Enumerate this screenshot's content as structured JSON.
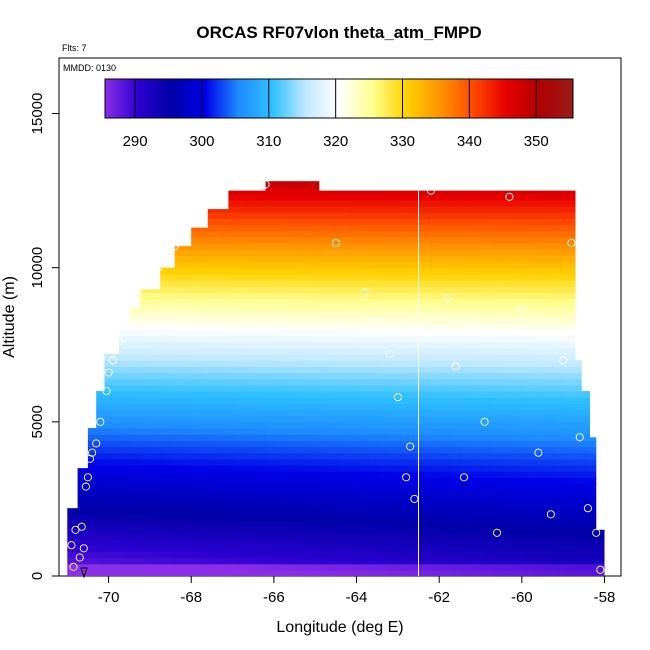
{
  "chart_data": {
    "type": "heatmap",
    "title": "ORCAS RF07vlon theta_atm_FMPD",
    "flights_label": "Flts: 7",
    "date_label": "MMDD: 0130",
    "xlabel": "Longitude (deg E)",
    "ylabel": "Altitude (m)",
    "xlim": [
      -71.2,
      -57.6
    ],
    "ylim": [
      0,
      16800
    ],
    "x_ticks": [
      -70,
      -68,
      -66,
      -64,
      -62,
      -60,
      -58
    ],
    "x_tick_labels": [
      "-70",
      "-68",
      "-66",
      "-64",
      "-62",
      "-60",
      "-58"
    ],
    "y_ticks": [
      0,
      5000,
      10000,
      15000
    ],
    "y_tick_labels": [
      "0",
      "5000",
      "10000",
      "15000"
    ],
    "colorbar": {
      "range": [
        285.5,
        355.5
      ],
      "ticks": [
        290,
        300,
        310,
        320,
        330,
        340,
        350
      ],
      "tick_labels": [
        "290",
        "300",
        "310",
        "320",
        "330",
        "340",
        "350"
      ],
      "colors": [
        "#8b2ee8",
        "#2a00d0",
        "#0000a8",
        "#0000e8",
        "#1d8cff",
        "#2ec0ff",
        "#bfe8ff",
        "#ffffff",
        "#ffff90",
        "#ffd200",
        "#ff9600",
        "#ff4b00",
        "#e80000",
        "#b00000",
        "#9a1c1c"
      ]
    },
    "vertical_line_x": -62.5,
    "upper_boundary": [
      [
        -71.0,
        0
      ],
      [
        -71.0,
        2200
      ],
      [
        -70.75,
        2200
      ],
      [
        -70.75,
        3500
      ],
      [
        -70.5,
        3500
      ],
      [
        -70.5,
        4800
      ],
      [
        -70.3,
        4800
      ],
      [
        -70.3,
        6000
      ],
      [
        -70.1,
        6000
      ],
      [
        -70.1,
        7200
      ],
      [
        -69.75,
        7200
      ],
      [
        -69.75,
        8000
      ],
      [
        -69.5,
        8000
      ],
      [
        -69.5,
        8700
      ],
      [
        -69.25,
        8700
      ],
      [
        -69.25,
        9300
      ],
      [
        -68.75,
        9300
      ],
      [
        -68.75,
        10000
      ],
      [
        -68.4,
        10000
      ],
      [
        -68.4,
        10700
      ],
      [
        -68.0,
        10700
      ],
      [
        -68.0,
        11300
      ],
      [
        -67.6,
        11300
      ],
      [
        -67.6,
        11900
      ],
      [
        -67.1,
        11900
      ],
      [
        -67.1,
        12500
      ],
      [
        -66.2,
        12500
      ],
      [
        -66.2,
        12800
      ],
      [
        -64.9,
        12800
      ],
      [
        -64.9,
        12500
      ],
      [
        -58.7,
        12500
      ],
      [
        -58.7,
        7000
      ],
      [
        -58.55,
        7000
      ],
      [
        -58.55,
        6000
      ],
      [
        -58.35,
        6000
      ],
      [
        -58.35,
        4500
      ],
      [
        -58.2,
        4500
      ],
      [
        -58.2,
        1500
      ],
      [
        -58.0,
        1500
      ],
      [
        -58.0,
        0
      ]
    ],
    "flight_track_points": [
      [
        -70.9,
        1000
      ],
      [
        -70.85,
        300
      ],
      [
        -70.8,
        1500
      ],
      [
        -70.7,
        600
      ],
      [
        -70.65,
        1600
      ],
      [
        -70.6,
        900
      ],
      [
        -70.55,
        2900
      ],
      [
        -70.5,
        3200
      ],
      [
        -70.45,
        3800
      ],
      [
        -70.4,
        4000
      ],
      [
        -70.3,
        4300
      ],
      [
        -70.2,
        5000
      ],
      [
        -70.05,
        6000
      ],
      [
        -70.0,
        6600
      ],
      [
        -69.9,
        7000
      ],
      [
        -69.75,
        7600
      ],
      [
        -69.6,
        8200
      ],
      [
        -69.5,
        8700
      ],
      [
        -69.3,
        9200
      ],
      [
        -69.0,
        9500
      ],
      [
        -68.8,
        10000
      ],
      [
        -68.4,
        10700
      ],
      [
        -67.9,
        11500
      ],
      [
        -67.5,
        12200
      ],
      [
        -66.2,
        12700
      ],
      [
        -64.5,
        10800
      ],
      [
        -63.8,
        9200
      ],
      [
        -63.5,
        8200
      ],
      [
        -63.2,
        7200
      ],
      [
        -63.0,
        5800
      ],
      [
        -62.8,
        3200
      ],
      [
        -62.7,
        4200
      ],
      [
        -62.6,
        2500
      ],
      [
        -62.2,
        12500
      ],
      [
        -61.8,
        9000
      ],
      [
        -61.6,
        6800
      ],
      [
        -61.4,
        3200
      ],
      [
        -61.2,
        8100
      ],
      [
        -60.9,
        5000
      ],
      [
        -60.6,
        1400
      ],
      [
        -60.3,
        12300
      ],
      [
        -60.0,
        8700
      ],
      [
        -59.6,
        4000
      ],
      [
        -59.3,
        2000
      ],
      [
        -59.0,
        7000
      ],
      [
        -58.8,
        10800
      ],
      [
        -58.6,
        4500
      ],
      [
        -58.4,
        2200
      ],
      [
        -58.2,
        1400
      ],
      [
        -58.1,
        200
      ]
    ]
  }
}
